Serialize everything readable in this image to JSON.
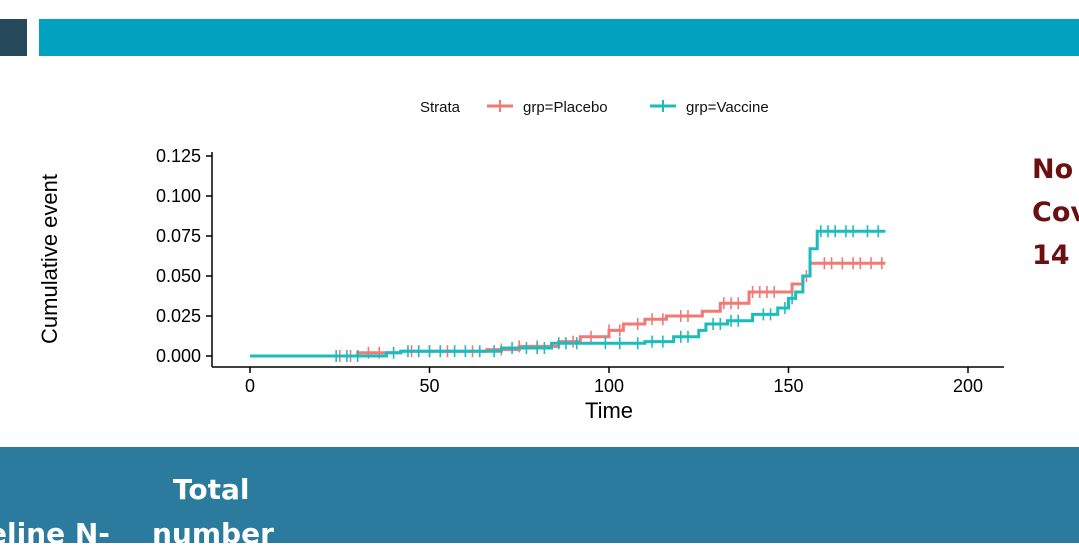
{
  "side_text": [
    "No",
    "Cov",
    "14"
  ],
  "bottom": {
    "col1": "eline N-",
    "col2_line1": "Total",
    "col2_line2": "number"
  },
  "colors": {
    "placebo": "#f07a76",
    "vaccine": "#1dbcbc",
    "header": "#00a2bf"
  },
  "chart_data": {
    "type": "line",
    "xlabel": "Time",
    "ylabel": "Cumulative event",
    "xlim": [
      -10,
      210
    ],
    "ylim": [
      0,
      0.125
    ],
    "xticks": [
      "0",
      "50",
      "100",
      "150",
      "200"
    ],
    "yticks": [
      "0.000",
      "0.025",
      "0.050",
      "0.075",
      "0.100",
      "0.125"
    ],
    "legend": {
      "title": "Strata",
      "position": "top",
      "entries": [
        "grp=Placebo",
        "grp=Vaccine"
      ]
    },
    "series": [
      {
        "name": "grp=Placebo",
        "color": "#f07a76",
        "steps": [
          [
            0,
            0
          ],
          [
            30,
            0.002
          ],
          [
            42,
            0.003
          ],
          [
            66,
            0.004
          ],
          [
            75,
            0.006
          ],
          [
            86,
            0.009
          ],
          [
            92,
            0.012
          ],
          [
            100,
            0.016
          ],
          [
            104,
            0.02
          ],
          [
            110,
            0.023
          ],
          [
            116,
            0.025
          ],
          [
            126,
            0.028
          ],
          [
            131,
            0.033
          ],
          [
            139,
            0.04
          ],
          [
            151,
            0.045
          ],
          [
            154,
            0.05
          ],
          [
            156,
            0.058
          ],
          [
            177,
            0.058
          ]
        ],
        "censor": [
          25,
          28,
          33,
          36,
          45,
          50,
          55,
          62,
          70,
          75,
          80,
          90,
          95,
          100,
          103,
          108,
          112,
          115,
          120,
          122,
          132,
          134,
          136,
          140,
          142,
          144,
          146,
          155,
          160,
          162,
          165,
          168,
          170,
          173,
          176
        ]
      },
      {
        "name": "grp=Vaccine",
        "color": "#1dbcbc",
        "steps": [
          [
            0,
            0
          ],
          [
            38,
            0.002
          ],
          [
            42,
            0.003
          ],
          [
            70,
            0.005
          ],
          [
            84,
            0.008
          ],
          [
            110,
            0.009
          ],
          [
            118,
            0.012
          ],
          [
            125,
            0.016
          ],
          [
            127,
            0.02
          ],
          [
            133,
            0.022
          ],
          [
            140,
            0.026
          ],
          [
            147,
            0.03
          ],
          [
            150,
            0.036
          ],
          [
            152,
            0.04
          ],
          [
            154,
            0.05
          ],
          [
            156,
            0.067
          ],
          [
            158,
            0.078
          ],
          [
            177,
            0.078
          ]
        ],
        "censor": [
          24,
          27,
          30,
          40,
          44,
          47,
          50,
          53,
          57,
          60,
          64,
          68,
          73,
          77,
          80,
          82,
          86,
          88,
          91,
          99,
          103,
          108,
          112,
          115,
          120,
          122,
          129,
          131,
          134,
          136,
          143,
          145,
          149,
          151,
          159,
          161,
          163,
          166,
          168,
          172,
          175
        ]
      }
    ]
  }
}
